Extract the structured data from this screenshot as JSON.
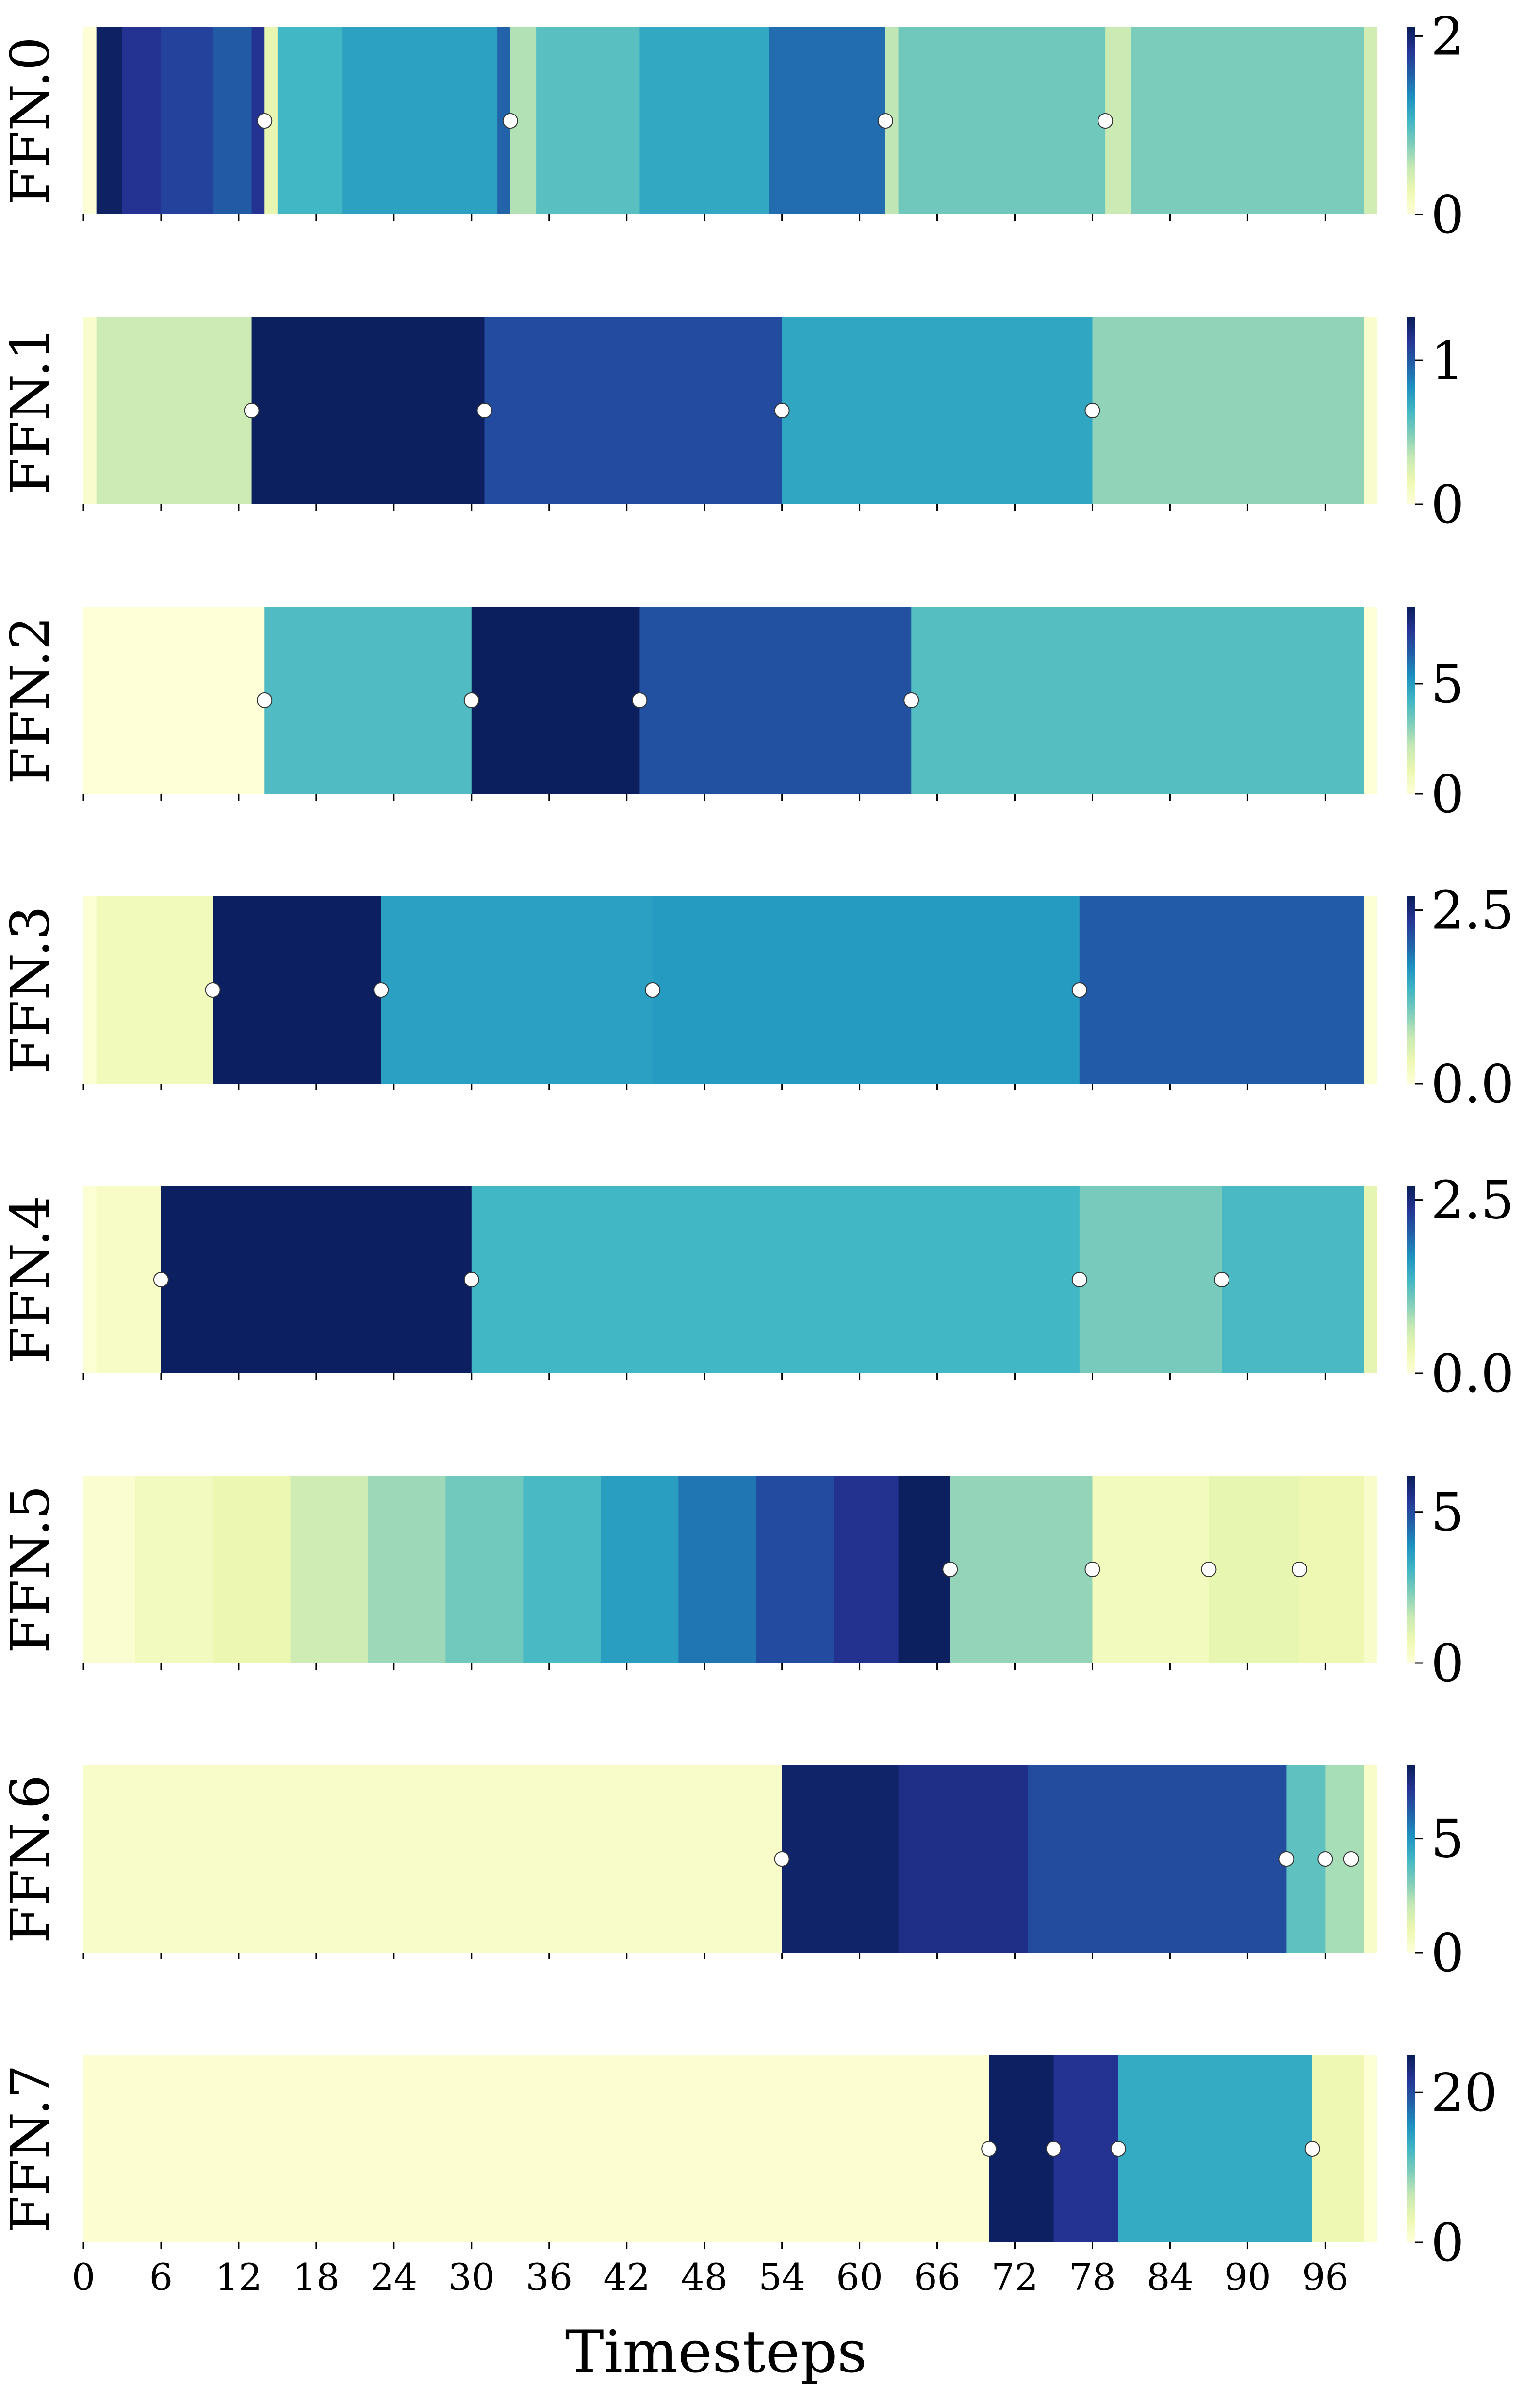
{
  "figure": {
    "xlabel": "Timesteps"
  },
  "colormap": [
    "#ffffd9",
    "#edf8b1",
    "#c7e9b4",
    "#7fcdbb",
    "#41b6c4",
    "#1d91c0",
    "#225ea8",
    "#253494",
    "#081d58"
  ],
  "chart_data": [
    {
      "type": "heatmap",
      "title": "",
      "ylabel": "FFN.0",
      "xlabel": "",
      "vmin": 0,
      "vmax": 2.1,
      "cbar_ticks": [
        0,
        2
      ],
      "cbar_tick_labels": [
        "0",
        "2"
      ],
      "segments": [
        {
          "start": 0,
          "end": 1,
          "value": 0.02
        },
        {
          "start": 1,
          "end": 3,
          "value": 2.05
        },
        {
          "start": 3,
          "end": 6,
          "value": 1.85
        },
        {
          "start": 6,
          "end": 10,
          "value": 1.75
        },
        {
          "start": 10,
          "end": 13,
          "value": 1.6
        },
        {
          "start": 13,
          "end": 14,
          "value": 1.85
        },
        {
          "start": 14,
          "end": 15,
          "value": 0.3
        },
        {
          "start": 15,
          "end": 20,
          "value": 1.05
        },
        {
          "start": 20,
          "end": 32,
          "value": 1.2
        },
        {
          "start": 32,
          "end": 33,
          "value": 1.55
        },
        {
          "start": 33,
          "end": 35,
          "value": 0.6
        },
        {
          "start": 35,
          "end": 43,
          "value": 0.95
        },
        {
          "start": 43,
          "end": 53,
          "value": 1.15
        },
        {
          "start": 53,
          "end": 62,
          "value": 1.5
        },
        {
          "start": 62,
          "end": 63,
          "value": 0.55
        },
        {
          "start": 63,
          "end": 79,
          "value": 0.85
        },
        {
          "start": 79,
          "end": 81,
          "value": 0.5
        },
        {
          "start": 81,
          "end": 99,
          "value": 0.8
        },
        {
          "start": 99,
          "end": 100,
          "value": 0.45
        }
      ],
      "markers": [
        14,
        33,
        62,
        79
      ]
    },
    {
      "type": "heatmap",
      "title": "",
      "ylabel": "FFN.1",
      "xlabel": "",
      "vmin": 0,
      "vmax": 1.3,
      "cbar_ticks": [
        0,
        1
      ],
      "cbar_tick_labels": [
        "0",
        "1"
      ],
      "segments": [
        {
          "start": 0,
          "end": 1,
          "value": 0.05
        },
        {
          "start": 1,
          "end": 13,
          "value": 0.3
        },
        {
          "start": 13,
          "end": 31,
          "value": 1.28
        },
        {
          "start": 31,
          "end": 54,
          "value": 1.05
        },
        {
          "start": 54,
          "end": 78,
          "value": 0.72
        },
        {
          "start": 78,
          "end": 99,
          "value": 0.45
        },
        {
          "start": 99,
          "end": 100,
          "value": 0.05
        }
      ],
      "markers": [
        13,
        31,
        54,
        78
      ]
    },
    {
      "type": "heatmap",
      "title": "",
      "ylabel": "FFN.2",
      "xlabel": "",
      "vmin": 0,
      "vmax": 8.5,
      "cbar_ticks": [
        0,
        5
      ],
      "cbar_tick_labels": [
        "0",
        "5"
      ],
      "segments": [
        {
          "start": 0,
          "end": 14,
          "value": 0.05
        },
        {
          "start": 14,
          "end": 30,
          "value": 4.0
        },
        {
          "start": 30,
          "end": 43,
          "value": 8.4
        },
        {
          "start": 43,
          "end": 64,
          "value": 6.7
        },
        {
          "start": 64,
          "end": 99,
          "value": 3.9
        },
        {
          "start": 99,
          "end": 100,
          "value": 0.05
        }
      ],
      "markers": [
        14,
        30,
        43,
        64
      ]
    },
    {
      "type": "heatmap",
      "title": "",
      "ylabel": "FFN.3",
      "xlabel": "",
      "vmin": 0,
      "vmax": 2.7,
      "cbar_ticks": [
        0,
        2.5
      ],
      "cbar_tick_labels": [
        "0.0",
        "2.5"
      ],
      "segments": [
        {
          "start": 0,
          "end": 1,
          "value": 0.05
        },
        {
          "start": 1,
          "end": 10,
          "value": 0.25
        },
        {
          "start": 10,
          "end": 23,
          "value": 2.65
        },
        {
          "start": 23,
          "end": 44,
          "value": 1.55
        },
        {
          "start": 44,
          "end": 77,
          "value": 1.6
        },
        {
          "start": 77,
          "end": 99,
          "value": 2.05
        },
        {
          "start": 99,
          "end": 100,
          "value": 0.05
        }
      ],
      "markers": [
        10,
        23,
        44,
        77
      ]
    },
    {
      "type": "heatmap",
      "title": "",
      "ylabel": "FFN.4",
      "xlabel": "",
      "vmin": 0,
      "vmax": 2.7,
      "cbar_ticks": [
        0,
        2.5
      ],
      "cbar_tick_labels": [
        "0.0",
        "2.5"
      ],
      "segments": [
        {
          "start": 0,
          "end": 1,
          "value": 0.05
        },
        {
          "start": 1,
          "end": 6,
          "value": 0.15
        },
        {
          "start": 6,
          "end": 30,
          "value": 2.65
        },
        {
          "start": 30,
          "end": 77,
          "value": 1.35
        },
        {
          "start": 77,
          "end": 88,
          "value": 1.05
        },
        {
          "start": 88,
          "end": 99,
          "value": 1.3
        },
        {
          "start": 99,
          "end": 100,
          "value": 0.4
        }
      ],
      "markers": [
        6,
        30,
        77,
        88
      ]
    },
    {
      "type": "heatmap",
      "title": "",
      "ylabel": "FFN.5",
      "xlabel": "",
      "vmin": 0,
      "vmax": 6.2,
      "cbar_ticks": [
        0,
        5
      ],
      "cbar_tick_labels": [
        "0",
        "5"
      ],
      "segments": [
        {
          "start": 0,
          "end": 4,
          "value": 0.2
        },
        {
          "start": 4,
          "end": 10,
          "value": 0.5
        },
        {
          "start": 10,
          "end": 16,
          "value": 0.8
        },
        {
          "start": 16,
          "end": 22,
          "value": 1.4
        },
        {
          "start": 22,
          "end": 28,
          "value": 2.0
        },
        {
          "start": 28,
          "end": 34,
          "value": 2.5
        },
        {
          "start": 34,
          "end": 40,
          "value": 3.0
        },
        {
          "start": 40,
          "end": 46,
          "value": 3.6
        },
        {
          "start": 46,
          "end": 52,
          "value": 4.3
        },
        {
          "start": 52,
          "end": 58,
          "value": 5.0
        },
        {
          "start": 58,
          "end": 63,
          "value": 5.5
        },
        {
          "start": 63,
          "end": 67,
          "value": 6.1
        },
        {
          "start": 67,
          "end": 78,
          "value": 2.1
        },
        {
          "start": 78,
          "end": 87,
          "value": 0.55
        },
        {
          "start": 87,
          "end": 94,
          "value": 0.9
        },
        {
          "start": 94,
          "end": 99,
          "value": 0.75
        },
        {
          "start": 99,
          "end": 100,
          "value": 0.3
        }
      ],
      "markers": [
        67,
        78,
        87,
        94
      ]
    },
    {
      "type": "heatmap",
      "title": "",
      "ylabel": "FFN.6",
      "xlabel": "",
      "vmin": 0,
      "vmax": 8.2,
      "cbar_ticks": [
        0,
        5
      ],
      "cbar_tick_labels": [
        "0",
        "5"
      ],
      "segments": [
        {
          "start": 0,
          "end": 54,
          "value": 0.4
        },
        {
          "start": 54,
          "end": 63,
          "value": 7.9
        },
        {
          "start": 63,
          "end": 73,
          "value": 7.4
        },
        {
          "start": 73,
          "end": 93,
          "value": 6.6
        },
        {
          "start": 93,
          "end": 96,
          "value": 3.6
        },
        {
          "start": 96,
          "end": 99,
          "value": 2.5
        },
        {
          "start": 99,
          "end": 100,
          "value": 0.4
        }
      ],
      "markers": [
        54,
        93,
        96,
        98
      ]
    },
    {
      "type": "heatmap",
      "title": "",
      "ylabel": "FFN.7",
      "xlabel": "Timesteps",
      "vmin": 0,
      "vmax": 25,
      "cbar_ticks": [
        0,
        20
      ],
      "cbar_tick_labels": [
        "0",
        "20"
      ],
      "xticks": [
        0,
        6,
        12,
        18,
        24,
        30,
        36,
        42,
        48,
        54,
        60,
        66,
        72,
        78,
        84,
        90,
        96
      ],
      "segments": [
        {
          "start": 0,
          "end": 70,
          "value": 0.6
        },
        {
          "start": 70,
          "end": 75,
          "value": 24.5
        },
        {
          "start": 75,
          "end": 80,
          "value": 22.0
        },
        {
          "start": 80,
          "end": 95,
          "value": 13.5
        },
        {
          "start": 95,
          "end": 99,
          "value": 3.0
        },
        {
          "start": 99,
          "end": 100,
          "value": 0.5
        }
      ],
      "markers": [
        70,
        75,
        80,
        95
      ]
    }
  ]
}
